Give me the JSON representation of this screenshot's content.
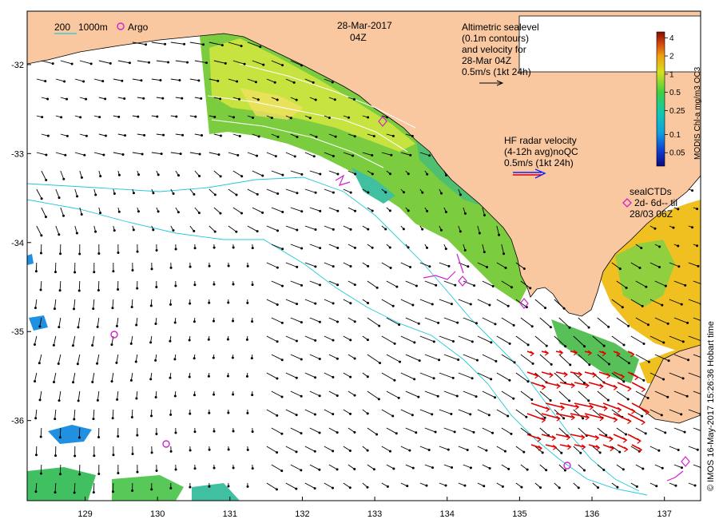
{
  "title": {
    "date": "28-Mar-2017",
    "time": "04Z"
  },
  "depth_legend": {
    "label_200": "200",
    "label_1000": "1000m",
    "color": "#22c8d8"
  },
  "argo_legend": {
    "label": "Argo",
    "color": "#d020d0"
  },
  "altimetry_legend": {
    "line1": "Altimetric sealevel",
    "line2": "(0.1m contours)",
    "line3": "and velocity for",
    "line4": "28-Mar 04Z",
    "line5": "0.5m/s (1kt 24h)"
  },
  "hf_radar_legend": {
    "line1": "HF radar velocity",
    "line2": "(4-12h avg)noQC",
    "line3": "0.5m/s (1kt 24h)"
  },
  "seal_legend": {
    "line1": "sealCTDs",
    "line2": "2d- 6d-- til",
    "line3": "28/03 06Z"
  },
  "colorbar": {
    "title": "MODIS Chl-a mg/m3 OC3",
    "ticks": [
      "4",
      "2",
      "1",
      "0.5",
      "0.25",
      "0.1",
      "0.05"
    ],
    "tick_values": [
      4,
      2,
      1,
      0.5,
      0.25,
      0.1,
      0.05
    ],
    "range": [
      0.03,
      5
    ]
  },
  "credit": "© IMOS 16-May-2017 15:26:36 Hobart time",
  "axes": {
    "lon_ticks": [
      "129",
      "130",
      "131",
      "132",
      "133",
      "134",
      "135",
      "136",
      "137"
    ],
    "lat_ticks": [
      "-32",
      "-33",
      "-34",
      "-35",
      "-36"
    ],
    "lon_range": [
      128.2,
      137.5
    ],
    "lat_range": [
      -36.9,
      -31.4
    ]
  },
  "colors": {
    "land": "#f9c8a0",
    "ocean": "#ffffff",
    "arrow": "#000000",
    "hf_arrow": "#e00000",
    "hf_legend_arrow": "#1020ff",
    "contour": "#ffffff"
  }
}
